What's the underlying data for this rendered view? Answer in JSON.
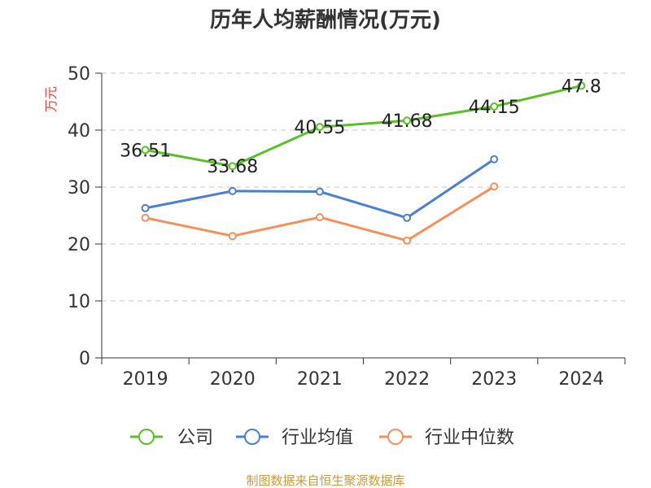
{
  "chart_data": {
    "type": "line",
    "title": "历年人均薪酬情况(万元)",
    "ylabel": "万元",
    "xlabel": "",
    "categories": [
      "2019",
      "2020",
      "2021",
      "2022",
      "2023",
      "2024"
    ],
    "ylim": [
      0,
      50
    ],
    "yticks": [
      "0",
      "10",
      "20",
      "30",
      "40",
      "50"
    ],
    "grid": true,
    "legend_position": "bottom",
    "series": [
      {
        "name": "公司",
        "color": "#5cbf2a",
        "values": [
          36.51,
          33.68,
          40.55,
          41.68,
          44.15,
          47.8
        ],
        "labels": [
          "36.51",
          "33.68",
          "40.55",
          "41.68",
          "44.15",
          "47.8"
        ]
      },
      {
        "name": "行业均值",
        "color": "#4a7fd4",
        "values": [
          26.3,
          29.3,
          29.2,
          24.6,
          34.9,
          null
        ]
      },
      {
        "name": "行业中位数",
        "color": "#f4905a",
        "values": [
          24.6,
          21.4,
          24.7,
          20.6,
          30.1,
          null
        ]
      }
    ]
  },
  "footer": "制图数据来自恒生聚源数据库"
}
